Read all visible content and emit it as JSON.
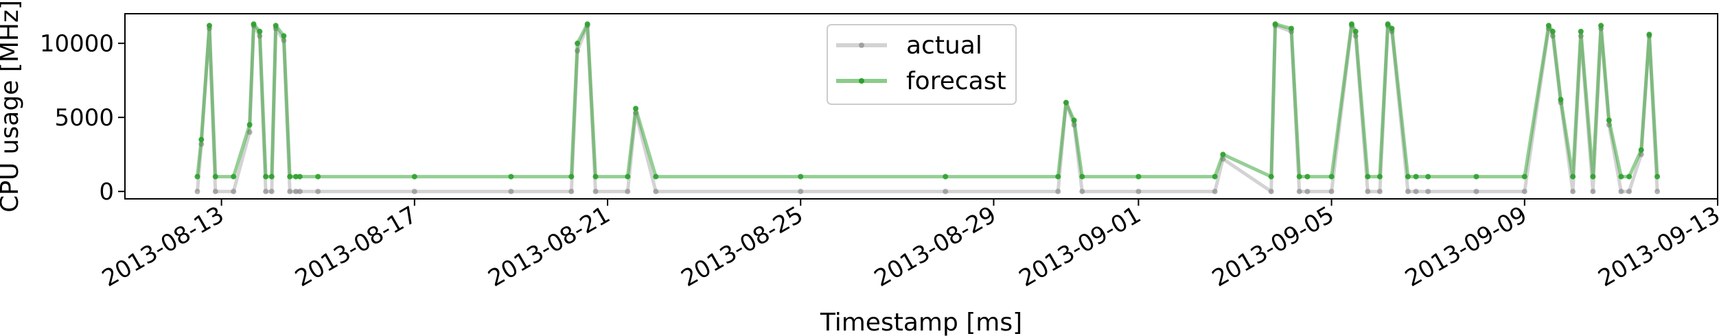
{
  "chart_data": {
    "type": "line",
    "xlabel": "Timestamp [ms]",
    "ylabel": "CPU usage [MHz]",
    "x_axis": "date",
    "xlim": [
      "2013-08-11T00:00",
      "2013-09-13T00:00"
    ],
    "ylim": [
      -500,
      12000
    ],
    "x_ticks": [
      "2013-08-13",
      "2013-08-17",
      "2013-08-21",
      "2013-08-25",
      "2013-08-29",
      "2013-09-01",
      "2013-09-05",
      "2013-09-09",
      "2013-09-13"
    ],
    "y_ticks": [
      0,
      5000,
      10000
    ],
    "grid": false,
    "legend_position": "top-center",
    "series": [
      {
        "name": "actual",
        "color": "#808080",
        "x": [
          "2013-08-12T12:00",
          "2013-08-12T14:00",
          "2013-08-12T18:00",
          "2013-08-12T21:00",
          "2013-08-13T06:00",
          "2013-08-13T14:00",
          "2013-08-13T16:00",
          "2013-08-13T19:00",
          "2013-08-13T22:00",
          "2013-08-14T01:00",
          "2013-08-14T03:00",
          "2013-08-14T07:00",
          "2013-08-14T10:00",
          "2013-08-14T13:00",
          "2013-08-14T15:00",
          "2013-08-15T00:00",
          "2013-08-17T00:00",
          "2013-08-19T00:00",
          "2013-08-20T06:00",
          "2013-08-20T09:00",
          "2013-08-20T14:00",
          "2013-08-20T18:00",
          "2013-08-21T10:00",
          "2013-08-21T14:00",
          "2013-08-22T00:00",
          "2013-08-25T00:00",
          "2013-08-28T00:00",
          "2013-08-30T08:00",
          "2013-08-30T12:00",
          "2013-08-30T16:00",
          "2013-08-30T20:00",
          "2013-09-01T00:00",
          "2013-09-02T14:00",
          "2013-09-02T18:00",
          "2013-09-03T18:00",
          "2013-09-03T20:00",
          "2013-09-04T04:00",
          "2013-09-04T08:00",
          "2013-09-04T12:00",
          "2013-09-05T00:00",
          "2013-09-05T10:00",
          "2013-09-05T12:00",
          "2013-09-05T18:00",
          "2013-09-06T00:00",
          "2013-09-06T04:00",
          "2013-09-06T06:00",
          "2013-09-06T14:00",
          "2013-09-06T18:00",
          "2013-09-07T00:00",
          "2013-09-08T00:00",
          "2013-09-09T00:00",
          "2013-09-09T12:00",
          "2013-09-09T14:00",
          "2013-09-09T18:00",
          "2013-09-10T00:00",
          "2013-09-10T04:00",
          "2013-09-10T10:00",
          "2013-09-10T14:00",
          "2013-09-10T18:00",
          "2013-09-11T00:00",
          "2013-09-11T04:00",
          "2013-09-11T10:00",
          "2013-09-11T14:00",
          "2013-09-11T18:00"
        ],
        "y": [
          0,
          3200,
          11000,
          0,
          0,
          4000,
          11200,
          10500,
          0,
          0,
          11000,
          10200,
          0,
          0,
          0,
          0,
          0,
          0,
          0,
          9500,
          11200,
          0,
          0,
          5300,
          0,
          0,
          0,
          0,
          6000,
          4500,
          0,
          0,
          0,
          2200,
          0,
          11200,
          10800,
          0,
          0,
          0,
          11200,
          10500,
          0,
          0,
          11200,
          10800,
          0,
          0,
          0,
          0,
          0,
          11000,
          10500,
          6000,
          0,
          10500,
          0,
          11000,
          4500,
          0,
          0,
          2500,
          10500,
          0
        ]
      },
      {
        "name": "forecast",
        "color": "#2ca02c",
        "x": [
          "2013-08-12T12:00",
          "2013-08-12T14:00",
          "2013-08-12T18:00",
          "2013-08-12T21:00",
          "2013-08-13T06:00",
          "2013-08-13T14:00",
          "2013-08-13T16:00",
          "2013-08-13T19:00",
          "2013-08-13T22:00",
          "2013-08-14T01:00",
          "2013-08-14T03:00",
          "2013-08-14T07:00",
          "2013-08-14T10:00",
          "2013-08-14T13:00",
          "2013-08-14T15:00",
          "2013-08-15T00:00",
          "2013-08-17T00:00",
          "2013-08-19T00:00",
          "2013-08-20T06:00",
          "2013-08-20T09:00",
          "2013-08-20T14:00",
          "2013-08-20T18:00",
          "2013-08-21T10:00",
          "2013-08-21T14:00",
          "2013-08-22T00:00",
          "2013-08-25T00:00",
          "2013-08-28T00:00",
          "2013-08-30T08:00",
          "2013-08-30T12:00",
          "2013-08-30T16:00",
          "2013-08-30T20:00",
          "2013-09-01T00:00",
          "2013-09-02T14:00",
          "2013-09-02T18:00",
          "2013-09-03T18:00",
          "2013-09-03T20:00",
          "2013-09-04T04:00",
          "2013-09-04T08:00",
          "2013-09-04T12:00",
          "2013-09-05T00:00",
          "2013-09-05T10:00",
          "2013-09-05T12:00",
          "2013-09-05T18:00",
          "2013-09-06T00:00",
          "2013-09-06T04:00",
          "2013-09-06T06:00",
          "2013-09-06T14:00",
          "2013-09-06T18:00",
          "2013-09-07T00:00",
          "2013-09-08T00:00",
          "2013-09-09T00:00",
          "2013-09-09T12:00",
          "2013-09-09T14:00",
          "2013-09-09T18:00",
          "2013-09-10T00:00",
          "2013-09-10T04:00",
          "2013-09-10T10:00",
          "2013-09-10T14:00",
          "2013-09-10T18:00",
          "2013-09-11T00:00",
          "2013-09-11T04:00",
          "2013-09-11T10:00",
          "2013-09-11T14:00",
          "2013-09-11T18:00"
        ],
        "y": [
          1000,
          3500,
          11200,
          1000,
          1000,
          4500,
          11300,
          10800,
          1000,
          1000,
          11200,
          10500,
          1000,
          1000,
          1000,
          1000,
          1000,
          1000,
          1000,
          10000,
          11300,
          1000,
          1000,
          5600,
          1000,
          1000,
          1000,
          1000,
          6000,
          4800,
          1000,
          1000,
          1000,
          2500,
          1000,
          11300,
          11000,
          1000,
          1000,
          1000,
          11300,
          10800,
          1000,
          1000,
          11300,
          11000,
          1000,
          1000,
          1000,
          1000,
          1000,
          11200,
          10800,
          6200,
          1000,
          10800,
          1000,
          11200,
          4800,
          1000,
          1000,
          2800,
          10600,
          1000
        ]
      }
    ]
  }
}
